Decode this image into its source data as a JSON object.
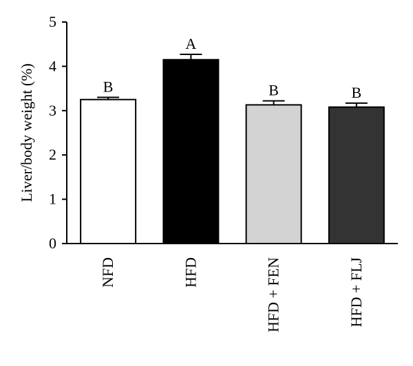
{
  "chart_data": {
    "type": "bar",
    "categories": [
      "NFD",
      "HFD",
      "HFD + FEN",
      "HFD + FLJ"
    ],
    "values": [
      3.25,
      4.15,
      3.13,
      3.08
    ],
    "errors": [
      0.05,
      0.12,
      0.09,
      0.09
    ],
    "significance_labels": [
      "B",
      "A",
      "B",
      "B"
    ],
    "bar_colors": [
      "#ffffff",
      "#000000",
      "#d3d3d3",
      "#333333"
    ],
    "ylabel": "Liver/body weight (%)",
    "xlabel": "",
    "ylim": [
      0,
      5
    ],
    "yticks": [
      "0",
      "1",
      "2",
      "3",
      "4",
      "5"
    ],
    "grid": false,
    "legend": "none"
  }
}
